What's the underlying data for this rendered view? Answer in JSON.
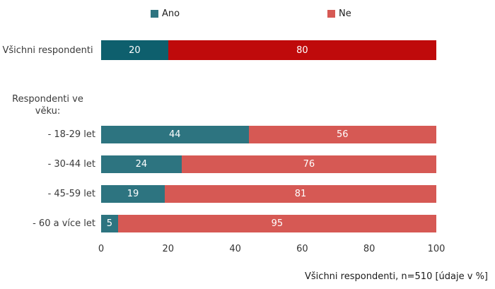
{
  "legend": [
    {
      "label": "Ano"
    },
    {
      "label": "Ne"
    }
  ],
  "footnote": "Všichni respondenti, n=510 [údaje v %]",
  "chart_data": {
    "type": "bar",
    "orientation": "horizontal",
    "stacked": true,
    "series_names": [
      "Ano",
      "Ne"
    ],
    "xlim": [
      0,
      100
    ],
    "x_ticks": [
      "0",
      "20",
      "40",
      "60",
      "80",
      "100"
    ],
    "grid": false,
    "legend_position": "top",
    "rows": [
      {
        "type": "bar",
        "label": "Všichni respondenti",
        "emphasis": true,
        "values": {
          "Ano": 20,
          "Ne": 80
        }
      },
      {
        "type": "header",
        "label": "Respondenti ve věku:"
      },
      {
        "type": "bar",
        "label": "- 18-29 let",
        "emphasis": false,
        "values": {
          "Ano": 44,
          "Ne": 56
        }
      },
      {
        "type": "bar",
        "label": "- 30-44 let",
        "emphasis": false,
        "values": {
          "Ano": 24,
          "Ne": 76
        }
      },
      {
        "type": "bar",
        "label": "- 45-59 let",
        "emphasis": false,
        "values": {
          "Ano": 19,
          "Ne": 81
        }
      },
      {
        "type": "bar",
        "label": "- 60 a více let",
        "emphasis": false,
        "values": {
          "Ano": 5,
          "Ne": 95
        }
      }
    ],
    "colors": {
      "ano": "#2d7480",
      "ne": "#d65954",
      "ano_emphasis": "#0e5f6d",
      "ne_emphasis": "#bf0a0b"
    },
    "note": "Všichni respondenti, n=510 [údaje v %]"
  }
}
